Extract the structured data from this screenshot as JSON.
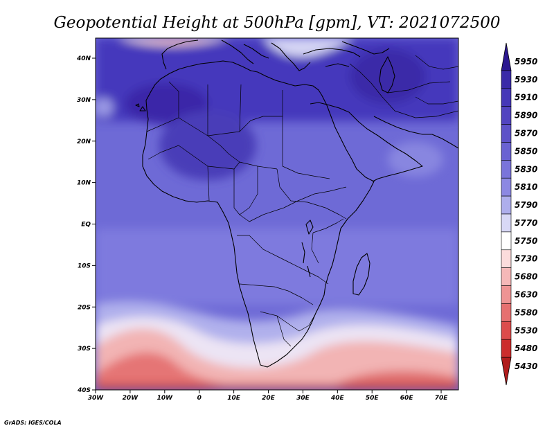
{
  "title": "Geopotential Height at 500hPa [gpm], VT: 2021072500",
  "credit": "GrADS: IGES/COLA",
  "axes": {
    "x_ticks": [
      "30W",
      "20W",
      "10W",
      "0",
      "10E",
      "20E",
      "30E",
      "40E",
      "50E",
      "60E",
      "70E"
    ],
    "y_ticks": [
      "40N",
      "30N",
      "20N",
      "10N",
      "EQ",
      "10S",
      "20S",
      "30S",
      "40S"
    ]
  },
  "colorbar": {
    "levels": [
      "5950",
      "5930",
      "5910",
      "5890",
      "5870",
      "5850",
      "5830",
      "5810",
      "5790",
      "5770",
      "5750",
      "5730",
      "5680",
      "5630",
      "5580",
      "5530",
      "5480",
      "5430"
    ],
    "colors": [
      "#2c1890",
      "#3a2aa8",
      "#4638b8",
      "#5244c0",
      "#5e52c8",
      "#6a62d2",
      "#7a74da",
      "#8c88e2",
      "#aeaeec",
      "#d8d8f6",
      "#ffffff",
      "#fbdcdc",
      "#f5b8b8",
      "#ee9494",
      "#e67070",
      "#dc4c4c",
      "#cc2c2c",
      "#b01c1c"
    ]
  }
}
